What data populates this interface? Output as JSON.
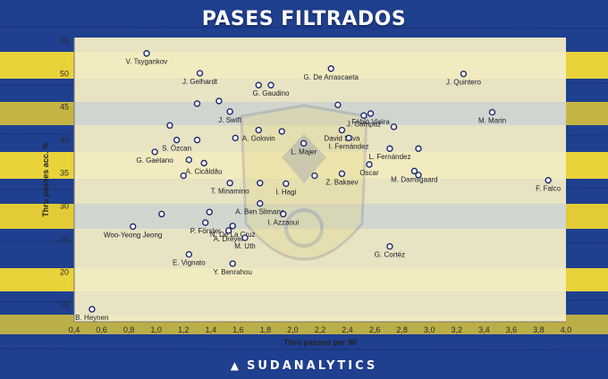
{
  "title": "PASES FILTRADOS",
  "brand": "SUDANALYTICS",
  "colors": {
    "board_blue": "#1f3f8f",
    "board_yellow": "#e9d23a",
    "plot_bg": "#f2ecc6",
    "plot_band_blue": "#b7c4dd",
    "marker_fill": "#ffffff",
    "marker_stroke": "#1d2a6e"
  },
  "chart_data": {
    "type": "scatter",
    "title": "PASES FILTRADOS",
    "xlabel": "Thru passes per 90",
    "ylabel": "Thru passes acc. %",
    "xlim": [
      0.4,
      4.0
    ],
    "ylim": [
      12.5,
      55.5
    ],
    "xticks": [
      0.4,
      0.6,
      0.8,
      1.0,
      1.2,
      1.4,
      1.6,
      1.8,
      2.0,
      2.2,
      2.4,
      2.6,
      2.8,
      3.0,
      3.2,
      3.4,
      3.6,
      3.8,
      4.0
    ],
    "xtick_labels": [
      "0,4",
      "0,6",
      "0,8",
      "1,0",
      "1,2",
      "1,4",
      "1,6",
      "1,8",
      "2,0",
      "2,2",
      "2,4",
      "2,6",
      "2,8",
      "3,0",
      "3,2",
      "3,4",
      "3,6",
      "3,8",
      "4,0"
    ],
    "yticks": [
      15,
      20,
      25,
      30,
      35,
      40,
      45,
      50,
      55
    ],
    "grid": false,
    "points": [
      {
        "x": 0.93,
        "y": 53.1,
        "label": "V. Tsygankov",
        "labeled": true
      },
      {
        "x": 1.32,
        "y": 50.1,
        "label": "J. Gelhardt",
        "labeled": true
      },
      {
        "x": 1.75,
        "y": 48.3,
        "label": "",
        "labeled": false
      },
      {
        "x": 1.84,
        "y": 48.3,
        "label": "G. Gaudino",
        "labeled": true
      },
      {
        "x": 2.28,
        "y": 50.8,
        "label": "G. De Arrascaeta",
        "labeled": true
      },
      {
        "x": 3.25,
        "y": 50.0,
        "label": "J. Quintero",
        "labeled": true
      },
      {
        "x": 1.3,
        "y": 45.5,
        "label": "",
        "labeled": false
      },
      {
        "x": 1.46,
        "y": 45.9,
        "label": "",
        "labeled": false
      },
      {
        "x": 1.54,
        "y": 44.3,
        "label": "J. Swift",
        "labeled": true
      },
      {
        "x": 2.33,
        "y": 45.3,
        "label": "",
        "labeled": false
      },
      {
        "x": 2.52,
        "y": 43.7,
        "label": "J. Campaz",
        "labeled": true
      },
      {
        "x": 2.57,
        "y": 44.0,
        "label": "Fábio Vieira",
        "labeled": true
      },
      {
        "x": 3.46,
        "y": 44.2,
        "label": "M. Marin",
        "labeled": true
      },
      {
        "x": 1.1,
        "y": 42.2,
        "label": "",
        "labeled": false
      },
      {
        "x": 1.75,
        "y": 41.5,
        "label": "A. Golovin",
        "labeled": true
      },
      {
        "x": 1.92,
        "y": 41.3,
        "label": "",
        "labeled": false
      },
      {
        "x": 2.36,
        "y": 41.5,
        "label": "David Silva",
        "labeled": true
      },
      {
        "x": 2.74,
        "y": 42.0,
        "label": "",
        "labeled": false
      },
      {
        "x": 1.15,
        "y": 40.0,
        "label": "S. Özcan",
        "labeled": true
      },
      {
        "x": 1.3,
        "y": 40.0,
        "label": "",
        "labeled": false
      },
      {
        "x": 1.58,
        "y": 40.3,
        "label": "",
        "labeled": false
      },
      {
        "x": 2.41,
        "y": 40.3,
        "label": "I. Fernández",
        "labeled": true
      },
      {
        "x": 2.08,
        "y": 39.5,
        "label": "L. Majer",
        "labeled": true
      },
      {
        "x": 2.71,
        "y": 38.7,
        "label": "L. Fernández",
        "labeled": true
      },
      {
        "x": 2.92,
        "y": 38.7,
        "label": "",
        "labeled": false
      },
      {
        "x": 0.99,
        "y": 38.2,
        "label": "G. Gaetano",
        "labeled": true
      },
      {
        "x": 1.24,
        "y": 37.0,
        "label": "",
        "labeled": false
      },
      {
        "x": 1.35,
        "y": 36.5,
        "label": "A. Cicâldău",
        "labeled": true
      },
      {
        "x": 2.56,
        "y": 36.3,
        "label": "Oscar",
        "labeled": true
      },
      {
        "x": 3.87,
        "y": 33.9,
        "label": "F. Falco",
        "labeled": true
      },
      {
        "x": 1.2,
        "y": 34.6,
        "label": "",
        "labeled": false
      },
      {
        "x": 2.16,
        "y": 34.6,
        "label": "",
        "labeled": false
      },
      {
        "x": 2.36,
        "y": 34.9,
        "label": "Z. Bakaev",
        "labeled": true
      },
      {
        "x": 2.89,
        "y": 35.3,
        "label": "M. Damsgaard",
        "labeled": true
      },
      {
        "x": 2.92,
        "y": 34.7,
        "label": "",
        "labeled": false
      },
      {
        "x": 1.54,
        "y": 33.5,
        "label": "T. Minamino",
        "labeled": true
      },
      {
        "x": 1.76,
        "y": 33.5,
        "label": "",
        "labeled": false
      },
      {
        "x": 1.95,
        "y": 33.4,
        "label": "I. Hagi",
        "labeled": true
      },
      {
        "x": 1.76,
        "y": 30.4,
        "label": "A. Ben Slimane",
        "labeled": true
      },
      {
        "x": 1.04,
        "y": 28.8,
        "label": "",
        "labeled": false
      },
      {
        "x": 1.39,
        "y": 29.1,
        "label": "",
        "labeled": false
      },
      {
        "x": 1.93,
        "y": 28.8,
        "label": "I. Azzaoui",
        "labeled": true
      },
      {
        "x": 1.36,
        "y": 27.5,
        "label": "P. Förster",
        "labeled": true
      },
      {
        "x": 1.56,
        "y": 27.0,
        "label": "N. De La Cruz",
        "labeled": true
      },
      {
        "x": 0.83,
        "y": 26.9,
        "label": "Woo-Yeong Jeong",
        "labeled": true
      },
      {
        "x": 1.53,
        "y": 26.3,
        "label": "A. Dreyer",
        "labeled": true
      },
      {
        "x": 1.65,
        "y": 25.2,
        "label": "M. Uth",
        "labeled": true
      },
      {
        "x": 2.71,
        "y": 23.9,
        "label": "G. Cortéz",
        "labeled": true
      },
      {
        "x": 1.24,
        "y": 22.7,
        "label": "E. Vignato",
        "labeled": true
      },
      {
        "x": 1.56,
        "y": 21.3,
        "label": "Y. Benrahou",
        "labeled": true
      },
      {
        "x": 0.53,
        "y": 14.4,
        "label": "B. Heynen",
        "labeled": true
      }
    ]
  }
}
